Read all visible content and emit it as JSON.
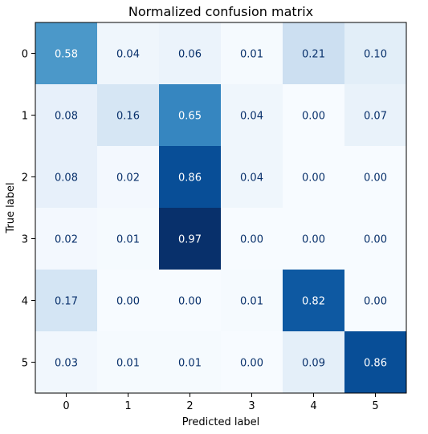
{
  "chart_data": {
    "type": "heatmap",
    "title": "Normalized confusion matrix",
    "xlabel": "Predicted label",
    "ylabel": "True label",
    "x_categories": [
      "0",
      "1",
      "2",
      "3",
      "4",
      "5"
    ],
    "y_categories": [
      "0",
      "1",
      "2",
      "3",
      "4",
      "5"
    ],
    "colormap": "Blues",
    "value_range": [
      0,
      0.97
    ],
    "matrix": [
      [
        0.58,
        0.04,
        0.06,
        0.01,
        0.21,
        0.1
      ],
      [
        0.08,
        0.16,
        0.65,
        0.04,
        0.0,
        0.07
      ],
      [
        0.08,
        0.02,
        0.86,
        0.04,
        0.0,
        0.0
      ],
      [
        0.02,
        0.01,
        0.97,
        0.0,
        0.0,
        0.0
      ],
      [
        0.17,
        0.0,
        0.0,
        0.01,
        0.82,
        0.0
      ],
      [
        0.03,
        0.01,
        0.01,
        0.0,
        0.09,
        0.86
      ]
    ],
    "text_colors": {
      "dark": "#08306b",
      "light": "#ffffff"
    }
  }
}
